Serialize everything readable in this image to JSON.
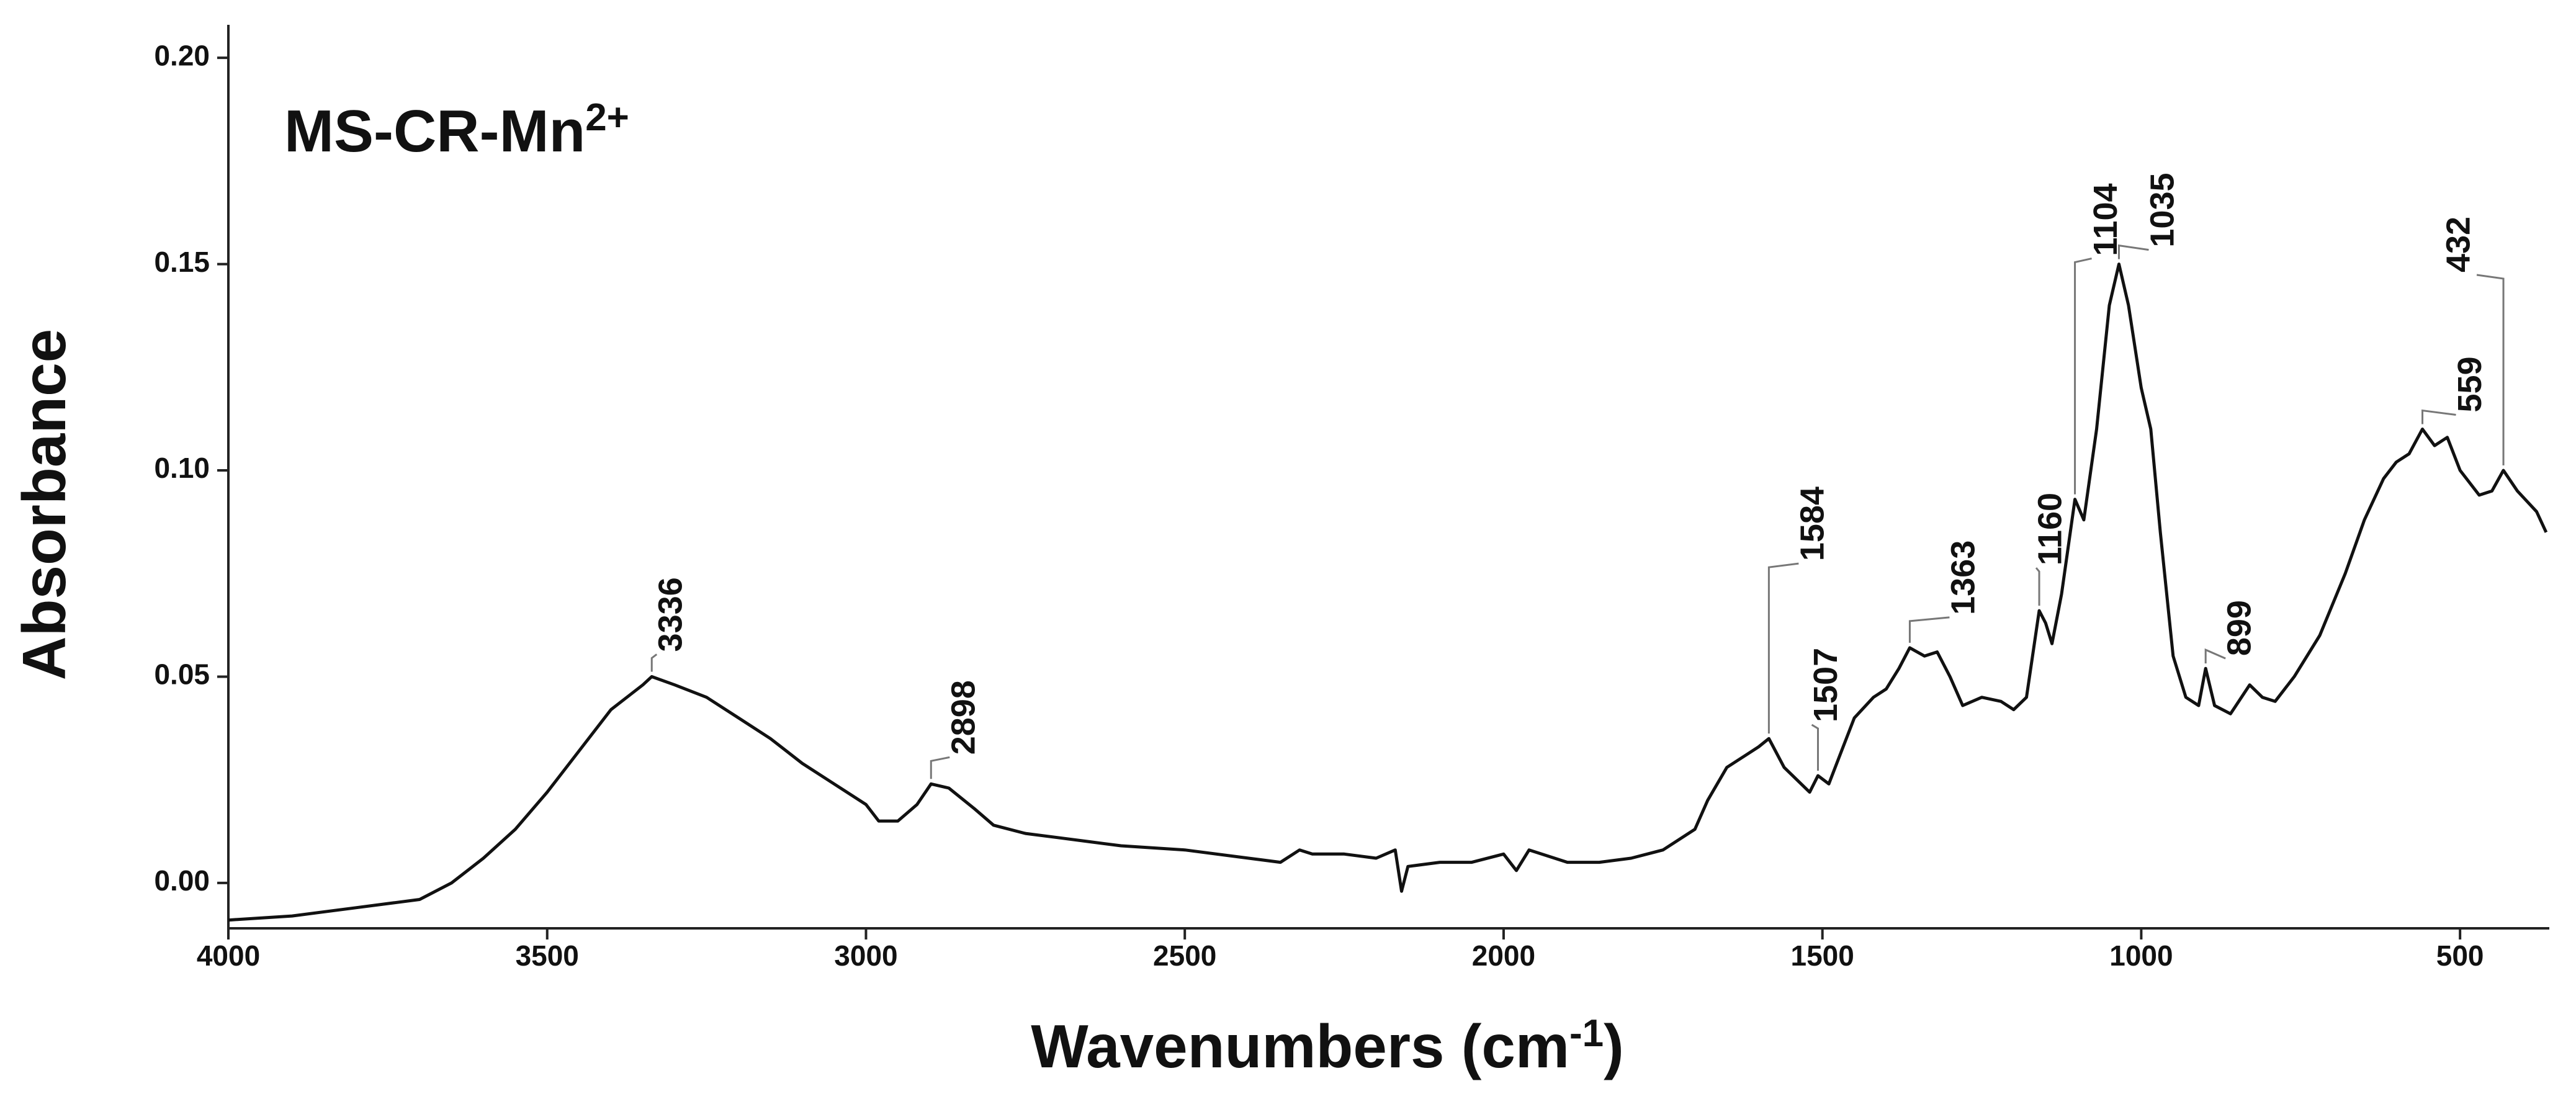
{
  "chart_data": {
    "type": "line",
    "title": {
      "text": "MS-CR-Mn",
      "sup": "2+"
    },
    "x_label": {
      "before": "Wavenumbers (cm",
      "sup": "-1",
      "after": ")"
    },
    "y_label": "Absorbance",
    "xlim": [
      4000,
      360
    ],
    "ylim": [
      -0.011,
      0.208
    ],
    "xticks": [
      4000,
      3500,
      3000,
      2500,
      2000,
      1500,
      1000,
      500
    ],
    "yticks": [
      {
        "value": 0,
        "label": "0.00"
      },
      {
        "value": 0.05,
        "label": "0.05"
      },
      {
        "value": 0.1,
        "label": "0.10"
      },
      {
        "value": 0.15,
        "label": "0.15"
      },
      {
        "value": 0.2,
        "label": "0.20"
      }
    ],
    "color": "#111111",
    "x": [
      4000,
      3900,
      3800,
      3700,
      3650,
      3600,
      3550,
      3500,
      3450,
      3400,
      3350,
      3336,
      3300,
      3250,
      3200,
      3150,
      3100,
      3050,
      3000,
      2980,
      2950,
      2920,
      2898,
      2870,
      2830,
      2800,
      2750,
      2700,
      2650,
      2600,
      2500,
      2400,
      2350,
      2320,
      2300,
      2250,
      2200,
      2170,
      2160,
      2150,
      2100,
      2050,
      2000,
      1980,
      1960,
      1900,
      1850,
      1800,
      1750,
      1700,
      1680,
      1650,
      1620,
      1600,
      1584,
      1560,
      1540,
      1520,
      1507,
      1490,
      1470,
      1450,
      1420,
      1400,
      1380,
      1363,
      1340,
      1320,
      1300,
      1280,
      1250,
      1220,
      1200,
      1180,
      1160,
      1150,
      1140,
      1125,
      1104,
      1090,
      1070,
      1050,
      1035,
      1020,
      1000,
      985,
      970,
      950,
      930,
      910,
      899,
      885,
      860,
      830,
      810,
      790,
      760,
      720,
      680,
      650,
      620,
      600,
      580,
      559,
      540,
      520,
      500,
      470,
      450,
      432,
      410,
      380,
      365
    ],
    "values": [
      -0.009,
      -0.008,
      -0.006,
      -0.004,
      0.0,
      0.006,
      0.013,
      0.022,
      0.032,
      0.042,
      0.048,
      0.05,
      0.048,
      0.045,
      0.04,
      0.035,
      0.029,
      0.024,
      0.019,
      0.015,
      0.015,
      0.019,
      0.024,
      0.023,
      0.018,
      0.014,
      0.012,
      0.011,
      0.01,
      0.009,
      0.008,
      0.006,
      0.005,
      0.008,
      0.007,
      0.007,
      0.006,
      0.008,
      -0.002,
      0.004,
      0.005,
      0.005,
      0.007,
      0.003,
      0.008,
      0.005,
      0.005,
      0.006,
      0.008,
      0.013,
      0.02,
      0.028,
      0.031,
      0.033,
      0.035,
      0.028,
      0.025,
      0.022,
      0.026,
      0.024,
      0.032,
      0.04,
      0.045,
      0.047,
      0.052,
      0.057,
      0.055,
      0.056,
      0.05,
      0.043,
      0.045,
      0.044,
      0.042,
      0.045,
      0.066,
      0.063,
      0.058,
      0.07,
      0.093,
      0.088,
      0.11,
      0.14,
      0.15,
      0.14,
      0.12,
      0.11,
      0.085,
      0.055,
      0.045,
      0.043,
      0.052,
      0.043,
      0.041,
      0.048,
      0.045,
      0.044,
      0.05,
      0.06,
      0.075,
      0.088,
      0.098,
      0.102,
      0.104,
      0.11,
      0.106,
      0.108,
      0.1,
      0.094,
      0.095,
      0.1,
      0.095,
      0.09,
      0.085
    ],
    "peaks": {
      "x": [
        3336,
        2898,
        1584,
        1507,
        1363,
        1160,
        1104,
        1035,
        899,
        559,
        432
      ],
      "y": [
        0.05,
        0.024,
        0.035,
        0.026,
        0.057,
        0.066,
        0.093,
        0.15,
        0.052,
        0.11,
        0.1
      ]
    }
  }
}
